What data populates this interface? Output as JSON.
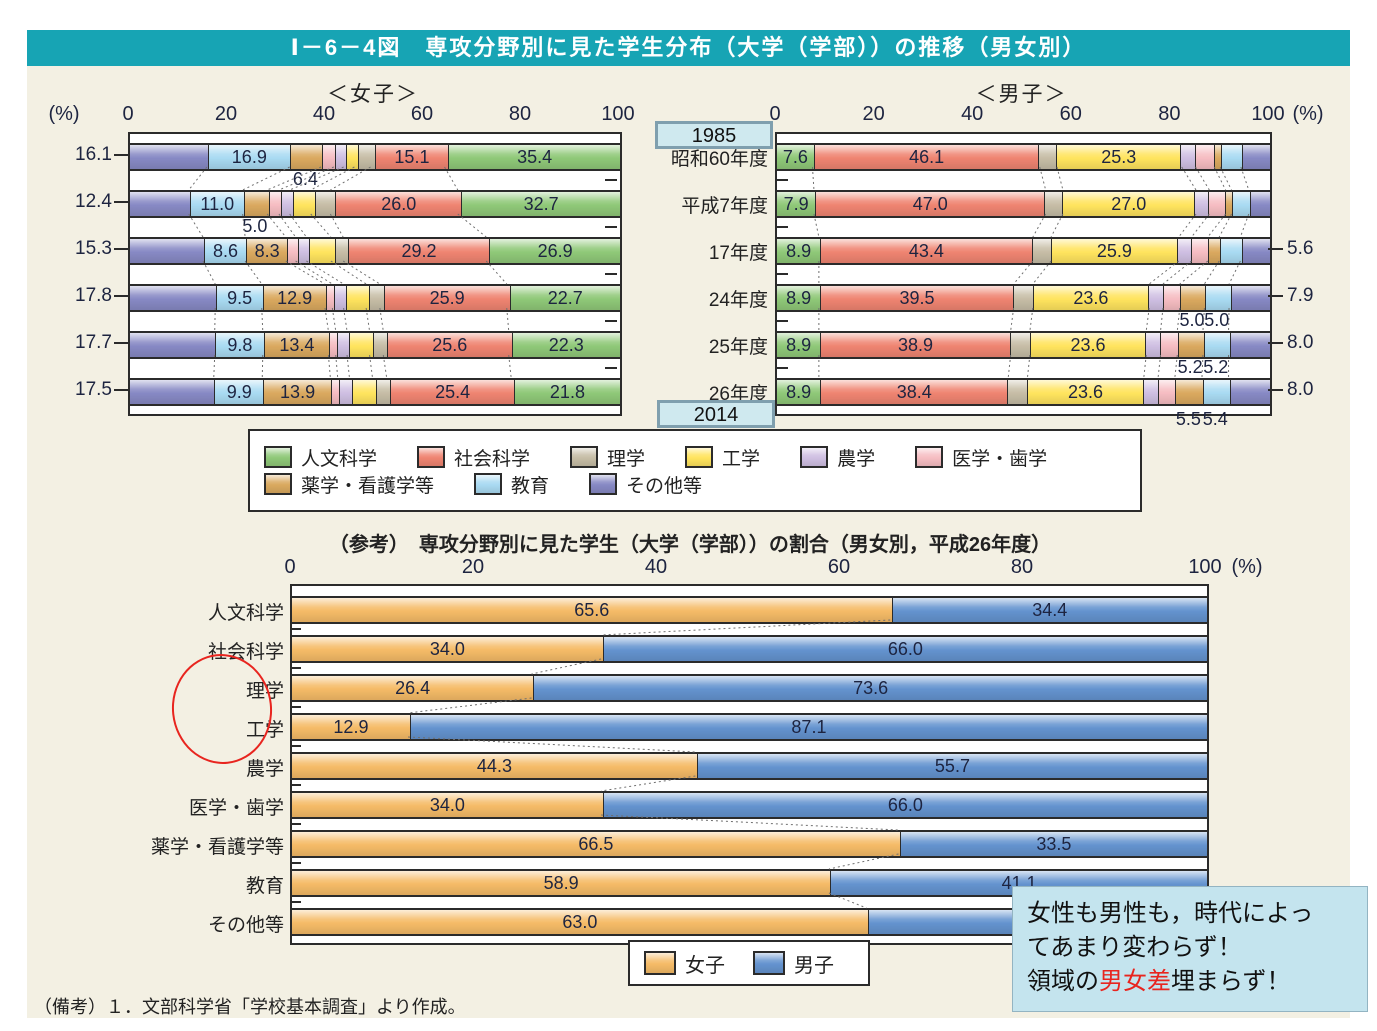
{
  "page": {
    "title": "Ⅰ－6－4図　専攻分野別に見た学生分布（大学（学部））の推移（男女別）",
    "footnote": "（備考）１．文部科学省「学校基本調査」より作成。"
  },
  "fields": [
    {
      "name": "人文科学",
      "slug": "humanities",
      "color": "#8fc878"
    },
    {
      "name": "社会科学",
      "slug": "social-sciences",
      "color": "#ef8471"
    },
    {
      "name": "理学",
      "slug": "science",
      "color": "#c6bda6"
    },
    {
      "name": "工学",
      "slug": "engineering",
      "color": "#ffe45e"
    },
    {
      "name": "農学",
      "slug": "agriculture",
      "color": "#cfbfe2"
    },
    {
      "name": "医学・歯学",
      "slug": "medicine-dentistry",
      "color": "#f6bdc2"
    },
    {
      "name": "薬学・看護学等",
      "slug": "pharmacy-nursing",
      "color": "#daa95f"
    },
    {
      "name": "教育",
      "slug": "education",
      "color": "#a9daf2"
    },
    {
      "name": "その他等",
      "slug": "others",
      "color": "#8789c4"
    }
  ],
  "top_section": {
    "rows": [
      "昭和60年度",
      "平成7年度",
      "17年度",
      "24年度",
      "25年度",
      "26年度"
    ],
    "start_year_tag": "1985",
    "end_year_tag": "2014",
    "legend_rows": [
      [
        "人文科学",
        "社会科学",
        "理学",
        "工学",
        "農学",
        "医学・歯学"
      ],
      [
        "薬学・看護学等",
        "教育",
        "その他等"
      ]
    ]
  },
  "chart_data": [
    {
      "id": "female",
      "type": "bar",
      "stacked": true,
      "direction": "right-to-left",
      "header": "＜女子＞",
      "axis": {
        "ticks": [
          100,
          80,
          60,
          40,
          20,
          0
        ],
        "unit": "(%)",
        "unit_side": "left"
      },
      "categories": [
        "昭和60年度",
        "平成7年度",
        "17年度",
        "24年度",
        "25年度",
        "26年度"
      ],
      "values": {
        "人文科学": [
          35.4,
          32.7,
          26.9,
          22.7,
          22.3,
          21.8
        ],
        "社会科学": [
          15.1,
          26.0,
          29.2,
          25.9,
          25.6,
          25.4
        ],
        "理学": [
          3.3,
          4.0,
          2.5,
          2.8,
          2.8,
          2.9
        ],
        "工学": [
          2.2,
          4.3,
          5.0,
          4.6,
          4.6,
          4.7
        ],
        "農学": [
          2.0,
          2.2,
          2.2,
          2.3,
          2.3,
          2.4
        ],
        "医学・歯学": [
          2.6,
          2.4,
          2.0,
          1.5,
          1.5,
          1.5
        ],
        "薬学・看護学等": [
          6.4,
          5.0,
          8.3,
          12.9,
          13.4,
          13.9
        ],
        "教育": [
          16.9,
          11.0,
          8.6,
          9.5,
          9.8,
          9.9
        ],
        "その他等": [
          16.1,
          12.4,
          15.3,
          17.8,
          17.7,
          17.5
        ]
      },
      "unlabeled_estimated": [
        "理学",
        "工学",
        "農学",
        "医学・歯学"
      ],
      "inline_labels": {
        "人文科学": [
          0,
          1,
          2,
          3,
          4,
          5
        ],
        "社会科学": [
          0,
          1,
          2,
          3,
          4,
          5
        ],
        "薬学・看護学等": [
          2,
          3,
          4,
          5
        ],
        "教育": [
          0,
          1,
          2,
          3,
          4,
          5
        ]
      },
      "outside_labels": {
        "side": "left",
        "field": "その他等",
        "texts": [
          "16.1",
          "12.4",
          "15.3",
          "17.8",
          "17.7",
          "17.5"
        ]
      },
      "callouts": [
        {
          "row": 0,
          "field": "薬学・看護学等",
          "text": "6.4",
          "dy": 2
        },
        {
          "row": 1,
          "field": "薬学・看護学等",
          "text": "5.0",
          "dy": 2
        }
      ]
    },
    {
      "id": "male",
      "type": "bar",
      "stacked": true,
      "direction": "left-to-right",
      "header": "＜男子＞",
      "axis": {
        "ticks": [
          0,
          20,
          40,
          60,
          80,
          100
        ],
        "unit": "(%)",
        "unit_side": "right"
      },
      "categories": [
        "昭和60年度",
        "平成7年度",
        "17年度",
        "24年度",
        "25年度",
        "26年度"
      ],
      "values": {
        "人文科学": [
          7.6,
          7.9,
          8.9,
          8.9,
          8.9,
          8.9
        ],
        "社会科学": [
          46.1,
          47.0,
          43.4,
          39.5,
          38.9,
          38.4
        ],
        "理学": [
          3.5,
          3.5,
          3.7,
          3.9,
          3.9,
          3.9
        ],
        "工学": [
          25.3,
          27.0,
          25.9,
          23.6,
          23.6,
          23.6
        ],
        "農学": [
          2.8,
          2.7,
          2.6,
          2.8,
          2.9,
          2.9
        ],
        "医学・歯学": [
          3.8,
          3.3,
          3.3,
          3.4,
          3.4,
          3.4
        ],
        "薬学・看護学等": [
          1.2,
          1.2,
          2.3,
          5.0,
          5.2,
          5.5
        ],
        "教育": [
          4.2,
          3.5,
          4.3,
          5.0,
          5.2,
          5.4
        ],
        "その他等": [
          5.5,
          3.9,
          5.6,
          7.9,
          8.0,
          8.0
        ]
      },
      "unlabeled_estimated": [
        "理学",
        "農学",
        "医学・歯学"
      ],
      "inline_labels": {
        "人文科学": [
          0,
          1,
          2,
          3,
          4,
          5
        ],
        "社会科学": [
          0,
          1,
          2,
          3,
          4,
          5
        ],
        "工学": [
          0,
          1,
          2,
          3,
          4,
          5
        ]
      },
      "outside_labels": {
        "side": "right",
        "field": "その他等",
        "texts": [
          null,
          null,
          "5.6",
          "7.9",
          "8.0",
          "8.0"
        ]
      },
      "callouts": [
        {
          "row": 3,
          "field": "薬学・看護学等",
          "text": "5.0",
          "dy": 2
        },
        {
          "row": 3,
          "field": "教育",
          "text": "5.0",
          "dy": 2
        },
        {
          "row": 4,
          "field": "薬学・看護学等",
          "text": "5.2",
          "dy": 2
        },
        {
          "row": 4,
          "field": "教育",
          "text": "5.2",
          "dy": 2
        },
        {
          "row": 5,
          "field": "薬学・看護学等",
          "text": "5.5",
          "dy": 7
        },
        {
          "row": 5,
          "field": "教育",
          "text": "5.4",
          "dy": 7
        }
      ]
    },
    {
      "id": "reference",
      "type": "bar",
      "stacked": true,
      "title": "（参考）　専攻分野別に見た学生（大学（学部））の割合（男女別，平成26年度）",
      "axis": {
        "ticks": [
          0,
          20,
          40,
          60,
          80,
          100
        ],
        "unit": "(%)",
        "unit_side": "right"
      },
      "categories": [
        "人文科学",
        "社会科学",
        "理学",
        "工学",
        "農学",
        "医学・歯学",
        "薬学・看護学等",
        "教育",
        "その他等"
      ],
      "series": [
        {
          "name": "女子",
          "color": "#f5bb67",
          "values": [
            65.6,
            34.0,
            26.4,
            12.9,
            44.3,
            34.0,
            66.5,
            58.9,
            63.0
          ]
        },
        {
          "name": "男子",
          "color": "#6493cf",
          "values": [
            34.4,
            66.0,
            73.6,
            87.1,
            55.7,
            66.0,
            33.5,
            41.1,
            37.0
          ]
        }
      ],
      "circled_categories": [
        "理学",
        "工学"
      ],
      "circle_color": "#e8251f"
    }
  ],
  "bottom_annotation": {
    "line1": "女性も男性も，時代によっ",
    "line2": "てあまり変わらず！",
    "line3_prefix": "領域の",
    "line3_highlight": "男女差",
    "line3_suffix": "埋まらず！",
    "highlight_color": "#e8251f",
    "background": "#c4e4ee"
  }
}
